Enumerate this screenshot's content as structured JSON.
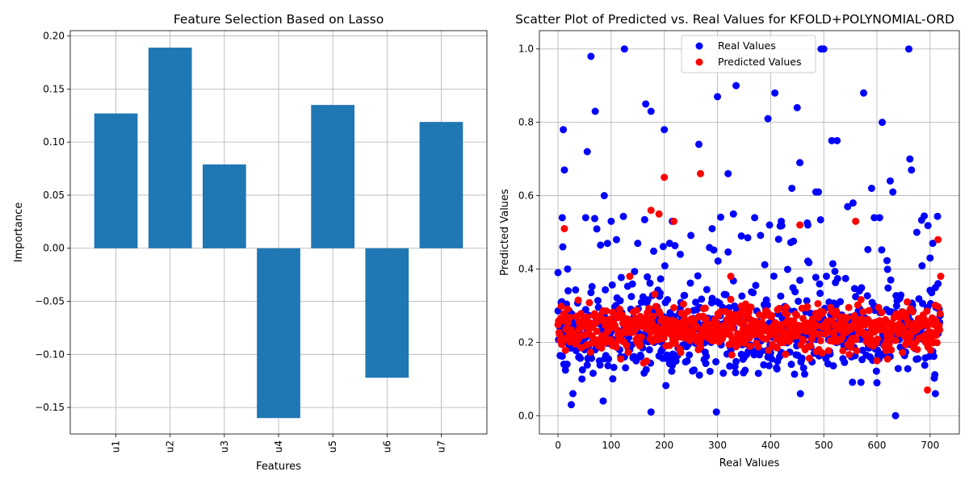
{
  "chart_data": [
    {
      "type": "bar",
      "title": "Feature Selection Based on Lasso",
      "xlabel": "Features",
      "ylabel": "Importance",
      "categories": [
        "u1",
        "u2",
        "u3",
        "u4",
        "u5",
        "u6",
        "u7"
      ],
      "values": [
        0.127,
        0.189,
        0.079,
        -0.16,
        0.135,
        -0.122,
        0.119
      ],
      "ylim": [
        -0.175,
        0.205
      ],
      "yticks": [
        -0.15,
        -0.1,
        -0.05,
        0.0,
        0.05,
        0.1,
        0.15,
        0.2
      ],
      "ytick_labels": [
        "−0.15",
        "−0.10",
        "−0.05",
        "0.00",
        "0.05",
        "0.10",
        "0.15",
        "0.20"
      ],
      "grid": true,
      "color": "#1f77b4"
    },
    {
      "type": "scatter",
      "title": "Scatter Plot of Predicted vs. Real Values for KFOLD+POLYNOMIAL-ORD",
      "xlabel": "Real Values",
      "ylabel": "Predicted Values",
      "xlim": [
        -35,
        755
      ],
      "ylim": [
        -0.05,
        1.05
      ],
      "xticks": [
        0,
        100,
        200,
        300,
        400,
        500,
        600,
        700
      ],
      "yticks": [
        0.0,
        0.2,
        0.4,
        0.6,
        0.8,
        1.0
      ],
      "ytick_labels": [
        "0.0",
        "0.2",
        "0.4",
        "0.6",
        "0.8",
        "1.0"
      ],
      "grid": true,
      "legend_position": "top-center",
      "n_points": 720,
      "series": [
        {
          "name": "Real Values",
          "color": "#0000ff",
          "notable_points": [
            [
              0,
              0.39
            ],
            [
              8,
              0.54
            ],
            [
              10,
              0.78
            ],
            [
              12,
              0.67
            ],
            [
              18,
              0.4
            ],
            [
              25,
              0.03
            ],
            [
              28,
              0.06
            ],
            [
              45,
              0.1
            ],
            [
              52,
              0.54
            ],
            [
              55,
              0.72
            ],
            [
              62,
              0.98
            ],
            [
              70,
              0.83
            ],
            [
              85,
              0.04
            ],
            [
              87,
              0.6
            ],
            [
              100,
              0.53
            ],
            [
              110,
              0.48
            ],
            [
              125,
              1.0
            ],
            [
              150,
              0.47
            ],
            [
              165,
              0.85
            ],
            [
              175,
              0.83
            ],
            [
              175,
              0.01
            ],
            [
              200,
              0.78
            ],
            [
              210,
              0.47
            ],
            [
              215,
              0.53
            ],
            [
              230,
              0.44
            ],
            [
              265,
              0.74
            ],
            [
              290,
              0.51
            ],
            [
              298,
              0.01
            ],
            [
              300,
              0.87
            ],
            [
              320,
              0.66
            ],
            [
              330,
              0.55
            ],
            [
              335,
              0.9
            ],
            [
              345,
              0.49
            ],
            [
              395,
              0.81
            ],
            [
              398,
              0.52
            ],
            [
              408,
              0.88
            ],
            [
              420,
              0.53
            ],
            [
              440,
              0.62
            ],
            [
              450,
              0.84
            ],
            [
              455,
              0.69
            ],
            [
              470,
              0.52
            ],
            [
              485,
              0.61
            ],
            [
              490,
              0.61
            ],
            [
              495,
              1.0
            ],
            [
              500,
              1.0
            ],
            [
              515,
              0.75
            ],
            [
              525,
              0.75
            ],
            [
              545,
              0.57
            ],
            [
              555,
              0.58
            ],
            [
              575,
              0.88
            ],
            [
              590,
              0.62
            ],
            [
              595,
              0.54
            ],
            [
              605,
              0.54
            ],
            [
              610,
              0.8
            ],
            [
              625,
              0.64
            ],
            [
              630,
              0.61
            ],
            [
              635,
              0.0
            ],
            [
              660,
              1.0
            ],
            [
              662,
              0.7
            ],
            [
              665,
              0.67
            ],
            [
              675,
              0.5
            ],
            [
              700,
              0.43
            ],
            [
              705,
              0.47
            ],
            [
              710,
              0.06
            ],
            [
              715,
              0.36
            ]
          ]
        },
        {
          "name": "Predicted Values",
          "color": "#ff0000",
          "notable_points": [
            [
              12,
              0.51
            ],
            [
              135,
              0.38
            ],
            [
              175,
              0.56
            ],
            [
              190,
              0.55
            ],
            [
              200,
              0.65
            ],
            [
              218,
              0.53
            ],
            [
              268,
              0.66
            ],
            [
              325,
              0.38
            ],
            [
              455,
              0.52
            ],
            [
              560,
              0.53
            ],
            [
              695,
              0.07
            ],
            [
              715,
              0.48
            ],
            [
              720,
              0.38
            ]
          ]
        }
      ]
    }
  ]
}
